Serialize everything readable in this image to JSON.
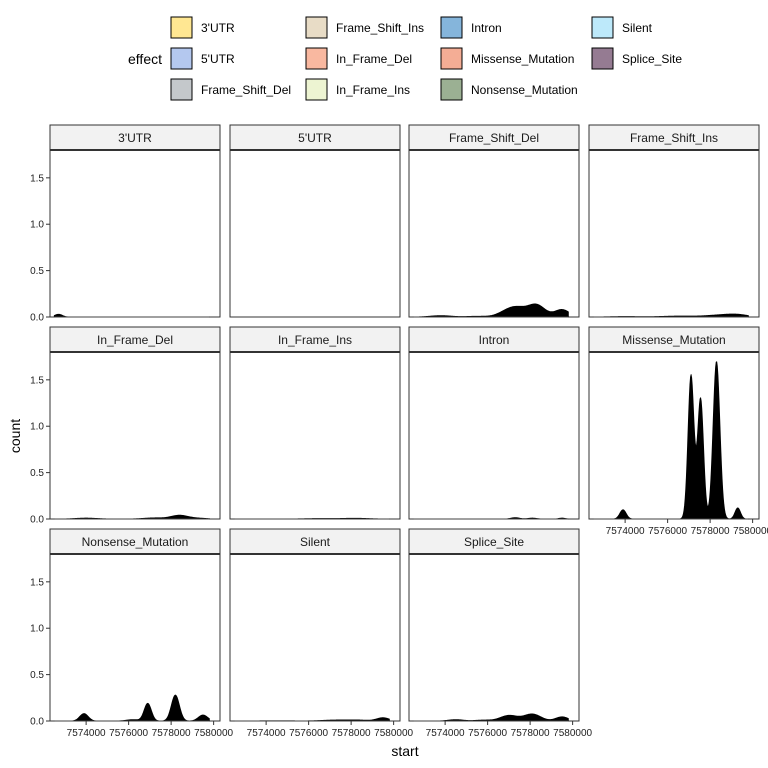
{
  "chart_data": {
    "type": "area",
    "subtype": "faceted density (stacked by effect)",
    "xlabel": "start",
    "ylabel": "count",
    "ylim": [
      0,
      1.8
    ],
    "y_ticks": [
      "0.0",
      "0.5",
      "1.0",
      "1.5"
    ],
    "y_tick_values": [
      0,
      0.5,
      1.0,
      1.5
    ],
    "xlim": [
      7572300,
      7580300
    ],
    "x_ticks": [
      "7574000",
      "7576000",
      "7578000",
      "7580000"
    ],
    "x_tick_values": [
      7574000,
      7576000,
      7578000,
      7580000
    ],
    "legend": {
      "title": "effect",
      "placement": "top",
      "entries": [
        {
          "name": "3'UTR",
          "color": "#ffe792"
        },
        {
          "name": "5'UTR",
          "color": "#b4c8ef"
        },
        {
          "name": "Frame_Shift_Del",
          "color": "#c4c8cb"
        },
        {
          "name": "Frame_Shift_Ins",
          "color": "#e8dcc6"
        },
        {
          "name": "In_Frame_Del",
          "color": "#f9b8a0"
        },
        {
          "name": "In_Frame_Ins",
          "color": "#edf4d2"
        },
        {
          "name": "Intron",
          "color": "#85b5db"
        },
        {
          "name": "Missense_Mutation",
          "color": "#f4ad95"
        },
        {
          "name": "Nonsense_Mutation",
          "color": "#9bb093"
        },
        {
          "name": "Silent",
          "color": "#bde9fa"
        },
        {
          "name": "Splice_Site",
          "color": "#957b92"
        }
      ]
    },
    "fill_color": "#000000",
    "grid": false,
    "panels": [
      {
        "name": "3'UTR",
        "x_range": [
          7572500,
          7579800
        ],
        "peaks": [
          [
            7572700,
            0.03,
            180
          ]
        ]
      },
      {
        "name": "5'UTR",
        "x_range": null,
        "peaks": []
      },
      {
        "name": "Frame_Shift_Del",
        "x_range": [
          7572500,
          7579800
        ],
        "peaks": [
          [
            7573800,
            0.015,
            500
          ],
          [
            7577000,
            0.07,
            450
          ],
          [
            7577500,
            0.06,
            400
          ],
          [
            7578300,
            0.13,
            400
          ],
          [
            7579500,
            0.08,
            350
          ],
          [
            7575500,
            0.008,
            500
          ]
        ]
      },
      {
        "name": "Frame_Shift_Ins",
        "x_range": [
          7572500,
          7579800
        ],
        "peaks": [
          [
            7574000,
            0.005,
            700
          ],
          [
            7576500,
            0.01,
            800
          ],
          [
            7578500,
            0.02,
            700
          ],
          [
            7579300,
            0.02,
            500
          ]
        ]
      },
      {
        "name": "In_Frame_Del",
        "x_range": [
          7572500,
          7579800
        ],
        "peaks": [
          [
            7574000,
            0.01,
            500
          ],
          [
            7577200,
            0.012,
            500
          ],
          [
            7578400,
            0.04,
            400
          ],
          [
            7579300,
            0.008,
            400
          ]
        ]
      },
      {
        "name": "In_Frame_Ins",
        "x_range": [
          7572500,
          7579800
        ],
        "peaks": [
          [
            7576500,
            0.005,
            700
          ],
          [
            7578200,
            0.008,
            600
          ]
        ]
      },
      {
        "name": "Intron",
        "x_range": [
          7572500,
          7579800
        ],
        "peaks": [
          [
            7577300,
            0.015,
            200
          ],
          [
            7578100,
            0.01,
            200
          ],
          [
            7579500,
            0.01,
            150
          ]
        ]
      },
      {
        "name": "Missense_Mutation",
        "x_range": [
          7572500,
          7579800
        ],
        "peaks": [
          [
            7573900,
            0.1,
            150
          ],
          [
            7577100,
            1.55,
            140
          ],
          [
            7577550,
            1.3,
            140
          ],
          [
            7578300,
            1.7,
            160
          ],
          [
            7579300,
            0.12,
            130
          ]
        ]
      },
      {
        "name": "Nonsense_Mutation",
        "x_range": [
          7572500,
          7579800
        ],
        "peaks": [
          [
            7573900,
            0.08,
            200
          ],
          [
            7576200,
            0.015,
            300
          ],
          [
            7576900,
            0.19,
            170
          ],
          [
            7578200,
            0.28,
            190
          ],
          [
            7579500,
            0.065,
            220
          ]
        ]
      },
      {
        "name": "Silent",
        "x_range": [
          7572500,
          7579800
        ],
        "peaks": [
          [
            7574500,
            0.003,
            800
          ],
          [
            7577200,
            0.01,
            600
          ],
          [
            7578300,
            0.01,
            500
          ],
          [
            7579500,
            0.035,
            300
          ]
        ]
      },
      {
        "name": "Splice_Site",
        "x_range": [
          7572500,
          7579800
        ],
        "peaks": [
          [
            7574500,
            0.015,
            350
          ],
          [
            7577000,
            0.06,
            400
          ],
          [
            7578100,
            0.075,
            400
          ],
          [
            7579500,
            0.045,
            300
          ],
          [
            7575800,
            0.01,
            400
          ]
        ]
      }
    ]
  }
}
